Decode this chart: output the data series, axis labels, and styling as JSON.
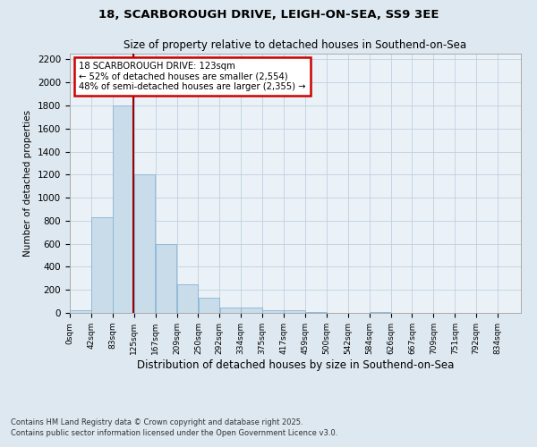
{
  "title1": "18, SCARBOROUGH DRIVE, LEIGH-ON-SEA, SS9 3EE",
  "title2": "Size of property relative to detached houses in Southend-on-Sea",
  "xlabel": "Distribution of detached houses by size in Southend-on-Sea",
  "ylabel": "Number of detached properties",
  "bar_color": "#c9dcea",
  "bar_edge_color": "#8ab4d4",
  "marker_line_color": "#990000",
  "marker_value": 123,
  "annotation_line1": "18 SCARBOROUGH DRIVE: 123sqm",
  "annotation_line2": "← 52% of detached houses are smaller (2,554)",
  "annotation_line3": "48% of semi-detached houses are larger (2,355) →",
  "annotation_edge_color": "#cc0000",
  "bin_edges": [
    0,
    41.5,
    83,
    124.5,
    166,
    207.5,
    249,
    290.5,
    332,
    373.5,
    415,
    456.5,
    498,
    539.5,
    581,
    622.5,
    664,
    705.5,
    747,
    788.5,
    830,
    875
  ],
  "bar_heights": [
    20,
    830,
    1800,
    1200,
    600,
    250,
    130,
    50,
    45,
    25,
    20,
    10,
    0,
    0,
    10,
    0,
    0,
    0,
    0,
    0,
    0
  ],
  "tick_labels": [
    "0sqm",
    "42sqm",
    "83sqm",
    "125sqm",
    "167sqm",
    "209sqm",
    "250sqm",
    "292sqm",
    "334sqm",
    "375sqm",
    "417sqm",
    "459sqm",
    "500sqm",
    "542sqm",
    "584sqm",
    "626sqm",
    "667sqm",
    "709sqm",
    "751sqm",
    "792sqm",
    "834sqm"
  ],
  "ylim": [
    0,
    2250
  ],
  "yticks": [
    0,
    200,
    400,
    600,
    800,
    1000,
    1200,
    1400,
    1600,
    1800,
    2000,
    2200
  ],
  "footnote1": "Contains HM Land Registry data © Crown copyright and database right 2025.",
  "footnote2": "Contains public sector information licensed under the Open Government Licence v3.0.",
  "bg_color": "#dde8f0",
  "plot_bg_color": "#eaf2f8"
}
